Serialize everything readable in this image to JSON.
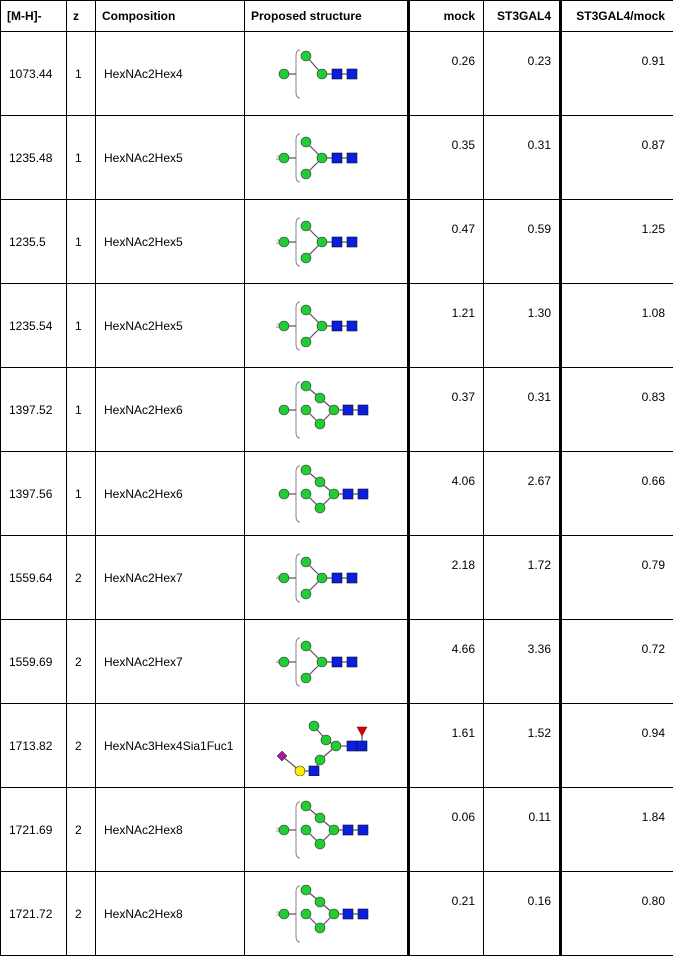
{
  "headers": {
    "mass": "[M-H]-",
    "z": "z",
    "composition": "Composition",
    "structure": "Proposed structure",
    "mock": "mock",
    "st3gal4": "ST3GAL4",
    "ratio": "ST3GAL4/mock"
  },
  "rows": [
    {
      "mass": "1073.44",
      "z": "1",
      "composition": "HexNAc2Hex4",
      "mock": "0.26",
      "st3gal4": "0.23",
      "ratio": "0.91",
      "glycan": "hex4",
      "tag": ""
    },
    {
      "mass": "1235.48",
      "z": "1",
      "composition": "HexNAc2Hex5",
      "mock": "0.35",
      "st3gal4": "0.31",
      "ratio": "0.87",
      "glycan": "hex5",
      "tag": "2x"
    },
    {
      "mass": "1235.5",
      "z": "1",
      "composition": "HexNAc2Hex5",
      "mock": "0.47",
      "st3gal4": "0.59",
      "ratio": "1.25",
      "glycan": "hex5",
      "tag": "2x"
    },
    {
      "mass": "1235.54",
      "z": "1",
      "composition": "HexNAc2Hex5",
      "mock": "1.21",
      "st3gal4": "1.30",
      "ratio": "1.08",
      "glycan": "hex5",
      "tag": "2x"
    },
    {
      "mass": "1397.52",
      "z": "1",
      "composition": "HexNAc2Hex6",
      "mock": "0.37",
      "st3gal4": "0.31",
      "ratio": "0.83",
      "glycan": "hex6",
      "tag": ""
    },
    {
      "mass": "1397.56",
      "z": "1",
      "composition": "HexNAc2Hex6",
      "mock": "4.06",
      "st3gal4": "2.67",
      "ratio": "0.66",
      "glycan": "hex6",
      "tag": ""
    },
    {
      "mass": "1559.64",
      "z": "2",
      "composition": "HexNAc2Hex7",
      "mock": "2.18",
      "st3gal4": "1.72",
      "ratio": "0.79",
      "glycan": "hex5",
      "tag": "4x"
    },
    {
      "mass": "1559.69",
      "z": "2",
      "composition": "HexNAc2Hex7",
      "mock": "4.66",
      "st3gal4": "3.36",
      "ratio": "0.72",
      "glycan": "hex5",
      "tag": "4x"
    },
    {
      "mass": "1713.82",
      "z": "2",
      "composition": "HexNAc3Hex4Sia1Fuc1",
      "mock": "1.61",
      "st3gal4": "1.52",
      "ratio": "0.94",
      "glycan": "hybrid",
      "tag": ""
    },
    {
      "mass": "1721.69",
      "z": "2",
      "composition": "HexNAc2Hex8",
      "mock": "0.06",
      "st3gal4": "0.11",
      "ratio": "1.84",
      "glycan": "hex6",
      "tag": "3x"
    },
    {
      "mass": "1721.72",
      "z": "2",
      "composition": "HexNAc2Hex8",
      "mock": "0.21",
      "st3gal4": "0.16",
      "ratio": "0.80",
      "glycan": "hex6",
      "tag": "3x"
    }
  ],
  "colors": {
    "mannose": "#22cc33",
    "glcnac": "#0a1ee0",
    "galactose": "#ffee00",
    "fucose": "#dd0000",
    "sialic": "#a020a0"
  }
}
